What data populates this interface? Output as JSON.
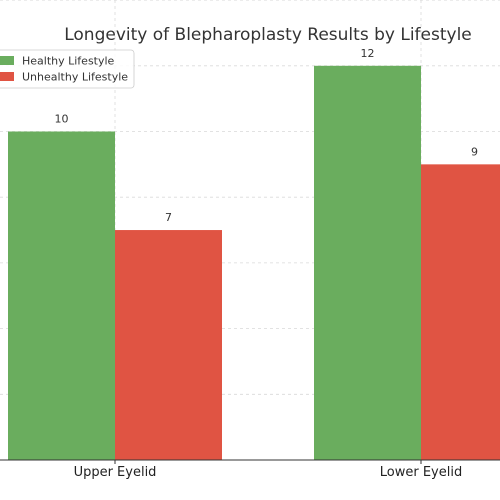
{
  "chart_data": {
    "type": "bar",
    "title": "Longevity of Blepharoplasty Results by Lifestyle",
    "xlabel": "",
    "ylabel": "",
    "categories": [
      "Upper Eyelid",
      "Lower Eyelid"
    ],
    "series": [
      {
        "name": "Healthy Lifestyle",
        "values": [
          10,
          12
        ],
        "color": "#6aad5e"
      },
      {
        "name": "Unhealthy Lifestyle",
        "values": [
          7,
          9
        ],
        "color": "#e05443"
      }
    ],
    "ylim": [
      0,
      14
    ],
    "grid": true,
    "legend_position": "top-left"
  }
}
